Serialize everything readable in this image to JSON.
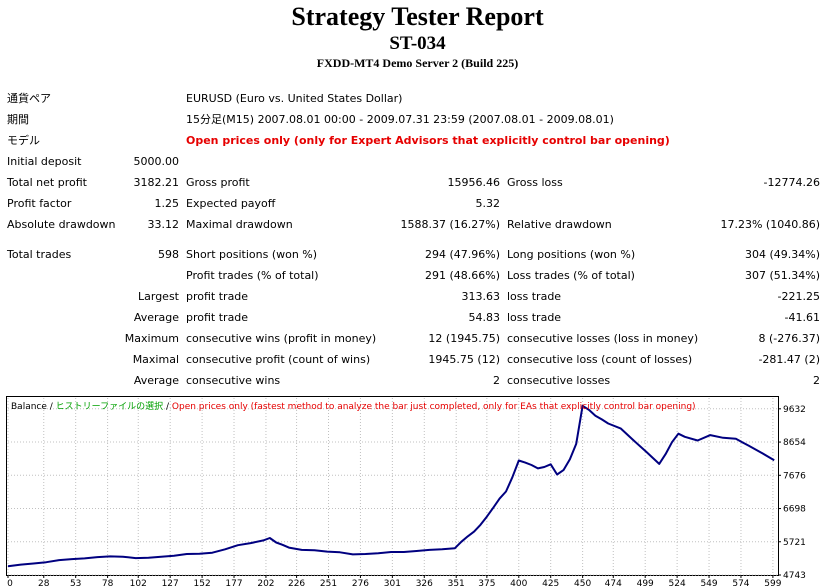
{
  "header": {
    "title": "Strategy Tester Report",
    "subtitle": "ST-034",
    "server": "FXDD-MT4 Demo Server 2 (Build 225)"
  },
  "info": {
    "symbol_label": "通貨ペア",
    "symbol_value": "EURUSD (Euro vs. United States Dollar)",
    "period_label": "期間",
    "period_value": "15分足(M15) 2007.08.01 00:00 - 2009.07.31 23:59 (2007.08.01 - 2009.08.01)",
    "model_label": "モデル",
    "model_value": "Open prices only (only for Expert Advisors that explicitly control bar opening)"
  },
  "stats": {
    "initial_deposit_label": "Initial deposit",
    "initial_deposit": "5000.00",
    "total_net_profit_label": "Total net profit",
    "total_net_profit": "3182.21",
    "gross_profit_label": "Gross profit",
    "gross_profit": "15956.46",
    "gross_loss_label": "Gross loss",
    "gross_loss": "-12774.26",
    "profit_factor_label": "Profit factor",
    "profit_factor": "1.25",
    "expected_payoff_label": "Expected payoff",
    "expected_payoff": "5.32",
    "absolute_drawdown_label": "Absolute drawdown",
    "absolute_drawdown": "33.12",
    "maximal_drawdown_label": "Maximal drawdown",
    "maximal_drawdown": "1588.37 (16.27%)",
    "relative_drawdown_label": "Relative drawdown",
    "relative_drawdown": "17.23% (1040.86)",
    "total_trades_label": "Total trades",
    "total_trades": "598",
    "short_positions_label": "Short positions (won %)",
    "short_positions": "294 (47.96%)",
    "long_positions_label": "Long positions (won %)",
    "long_positions": "304 (49.34%)",
    "profit_trades_label": "Profit trades (% of total)",
    "profit_trades": "291 (48.66%)",
    "loss_trades_label": "Loss trades (% of total)",
    "loss_trades": "307 (51.34%)",
    "largest_label": "Largest",
    "largest_profit_label": "profit trade",
    "largest_profit": "313.63",
    "largest_loss_label": "loss trade",
    "largest_loss": "-221.25",
    "average_label": "Average",
    "average_profit_label": "profit trade",
    "average_profit": "54.83",
    "average_loss_label": "loss trade",
    "average_loss": "-41.61",
    "maximum_label": "Maximum",
    "max_consec_wins_label": "consecutive wins (profit in money)",
    "max_consec_wins": "12 (1945.75)",
    "max_consec_losses_label": "consecutive losses (loss in money)",
    "max_consec_losses": "8 (-276.37)",
    "maximal_label": "Maximal",
    "maximal_consec_profit_label": "consecutive profit (count of wins)",
    "maximal_consec_profit": "1945.75 (12)",
    "maximal_consec_loss_label": "consecutive loss (count of losses)",
    "maximal_consec_loss": "-281.47 (2)",
    "average2_label": "Average",
    "avg_consec_wins_label": "consecutive wins",
    "avg_consec_wins": "2",
    "avg_consec_losses_label": "consecutive losses",
    "avg_consec_losses": "2"
  },
  "chart_data": {
    "type": "line",
    "legend": {
      "balance": "Balance",
      "sep1": " / ",
      "history": "ヒストリーファイルの選択",
      "sep2": " / ",
      "model": "Open prices only (fastest method to analyze the bar just completed, only for EAs that explicitly control bar opening)"
    },
    "colors": {
      "line": "#000080",
      "balance": "#000000",
      "history": "#00a000",
      "model": "#e60000"
    },
    "x_ticks": [
      0,
      28,
      53,
      78,
      102,
      127,
      152,
      177,
      202,
      226,
      251,
      276,
      301,
      326,
      351,
      375,
      400,
      425,
      450,
      474,
      499,
      524,
      549,
      574,
      599
    ],
    "y_ticks": [
      4743,
      5721,
      6698,
      7676,
      8654,
      9632
    ],
    "xlim": [
      0,
      603
    ],
    "ylim": [
      4743,
      9950
    ],
    "series": [
      {
        "x": [
          0,
          10,
          20,
          30,
          40,
          50,
          60,
          70,
          80,
          90,
          100,
          110,
          120,
          130,
          140,
          150,
          160,
          170,
          180,
          190,
          200,
          205,
          210,
          215,
          220,
          230,
          240,
          250,
          260,
          270,
          280,
          290,
          300,
          310,
          320,
          330,
          340,
          350,
          355,
          360,
          365,
          370,
          375,
          380,
          385,
          390,
          395,
          400,
          405,
          410,
          415,
          420,
          425,
          430,
          435,
          440,
          445,
          450,
          455,
          460,
          465,
          470,
          480,
          490,
          500,
          510,
          515,
          520,
          525,
          530,
          540,
          550,
          560,
          570,
          575,
          580,
          590,
          600
        ],
        "values": [
          5000,
          5050,
          5080,
          5120,
          5180,
          5210,
          5230,
          5270,
          5290,
          5280,
          5240,
          5250,
          5280,
          5310,
          5360,
          5370,
          5400,
          5500,
          5620,
          5680,
          5760,
          5830,
          5700,
          5630,
          5550,
          5480,
          5470,
          5430,
          5410,
          5350,
          5360,
          5380,
          5420,
          5420,
          5450,
          5480,
          5500,
          5530,
          5720,
          5880,
          6020,
          6220,
          6460,
          6720,
          6990,
          7200,
          7620,
          8110,
          8050,
          7980,
          7880,
          7920,
          8000,
          7700,
          7830,
          8150,
          8600,
          9720,
          9600,
          9430,
          9320,
          9200,
          9050,
          8700,
          8360,
          8010,
          8300,
          8650,
          8900,
          8810,
          8700,
          8860,
          8780,
          8750,
          8650,
          8550,
          8340,
          8120
        ]
      }
    ]
  }
}
